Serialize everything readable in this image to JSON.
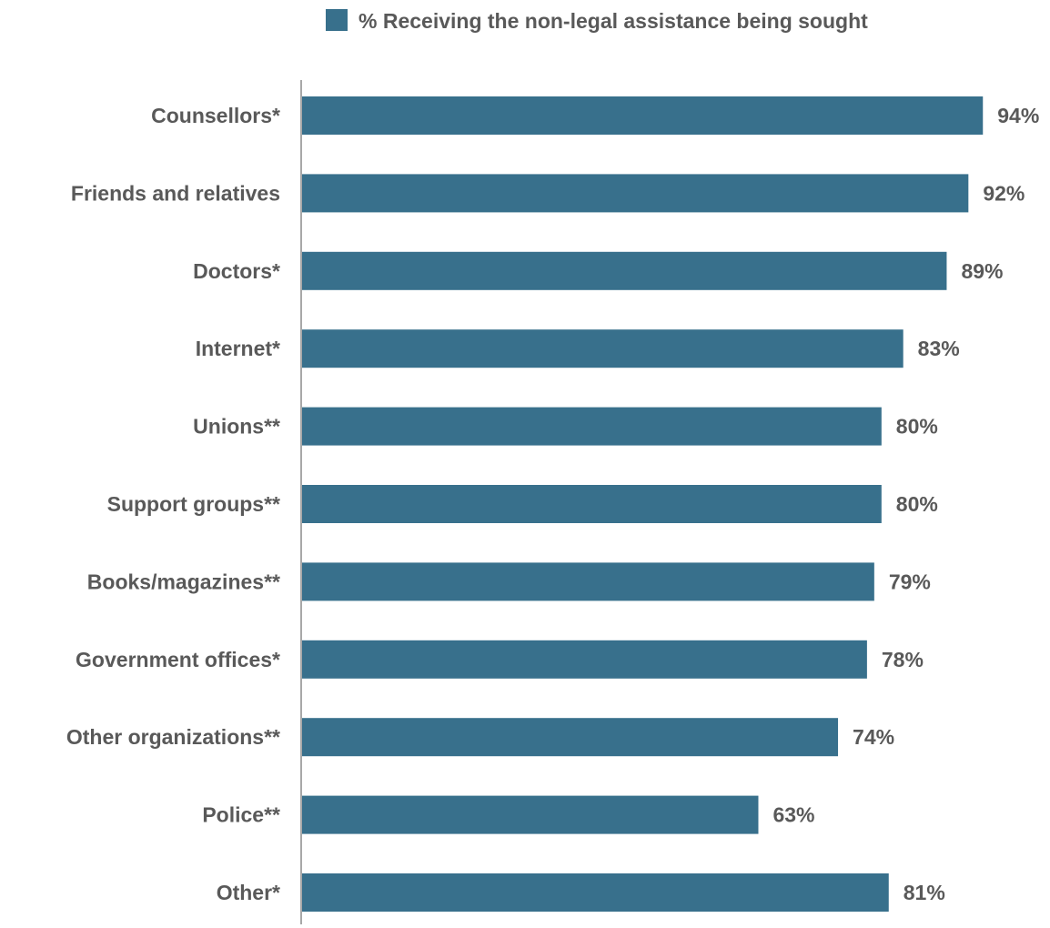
{
  "chart_data": {
    "type": "bar",
    "orientation": "horizontal",
    "categories": [
      "Counsellors*",
      "Friends and relatives",
      "Doctors*",
      "Internet*",
      "Unions**",
      "Support groups**",
      "Books/magazines**",
      "Government offices*",
      "Other organizations**",
      "Police**",
      "Other*"
    ],
    "series": [
      {
        "name": "% Receiving the non-legal assistance being sought",
        "color": "#38708c",
        "values": [
          94,
          92,
          89,
          83,
          80,
          80,
          79,
          78,
          74,
          63,
          81
        ],
        "data_labels": [
          "94%",
          "92%",
          "89%",
          "83%",
          "80%",
          "80%",
          "79%",
          "78%",
          "74%",
          "63%",
          "81%"
        ]
      }
    ],
    "xlim": [
      0,
      100
    ],
    "grid": false,
    "legend_position": "top"
  }
}
